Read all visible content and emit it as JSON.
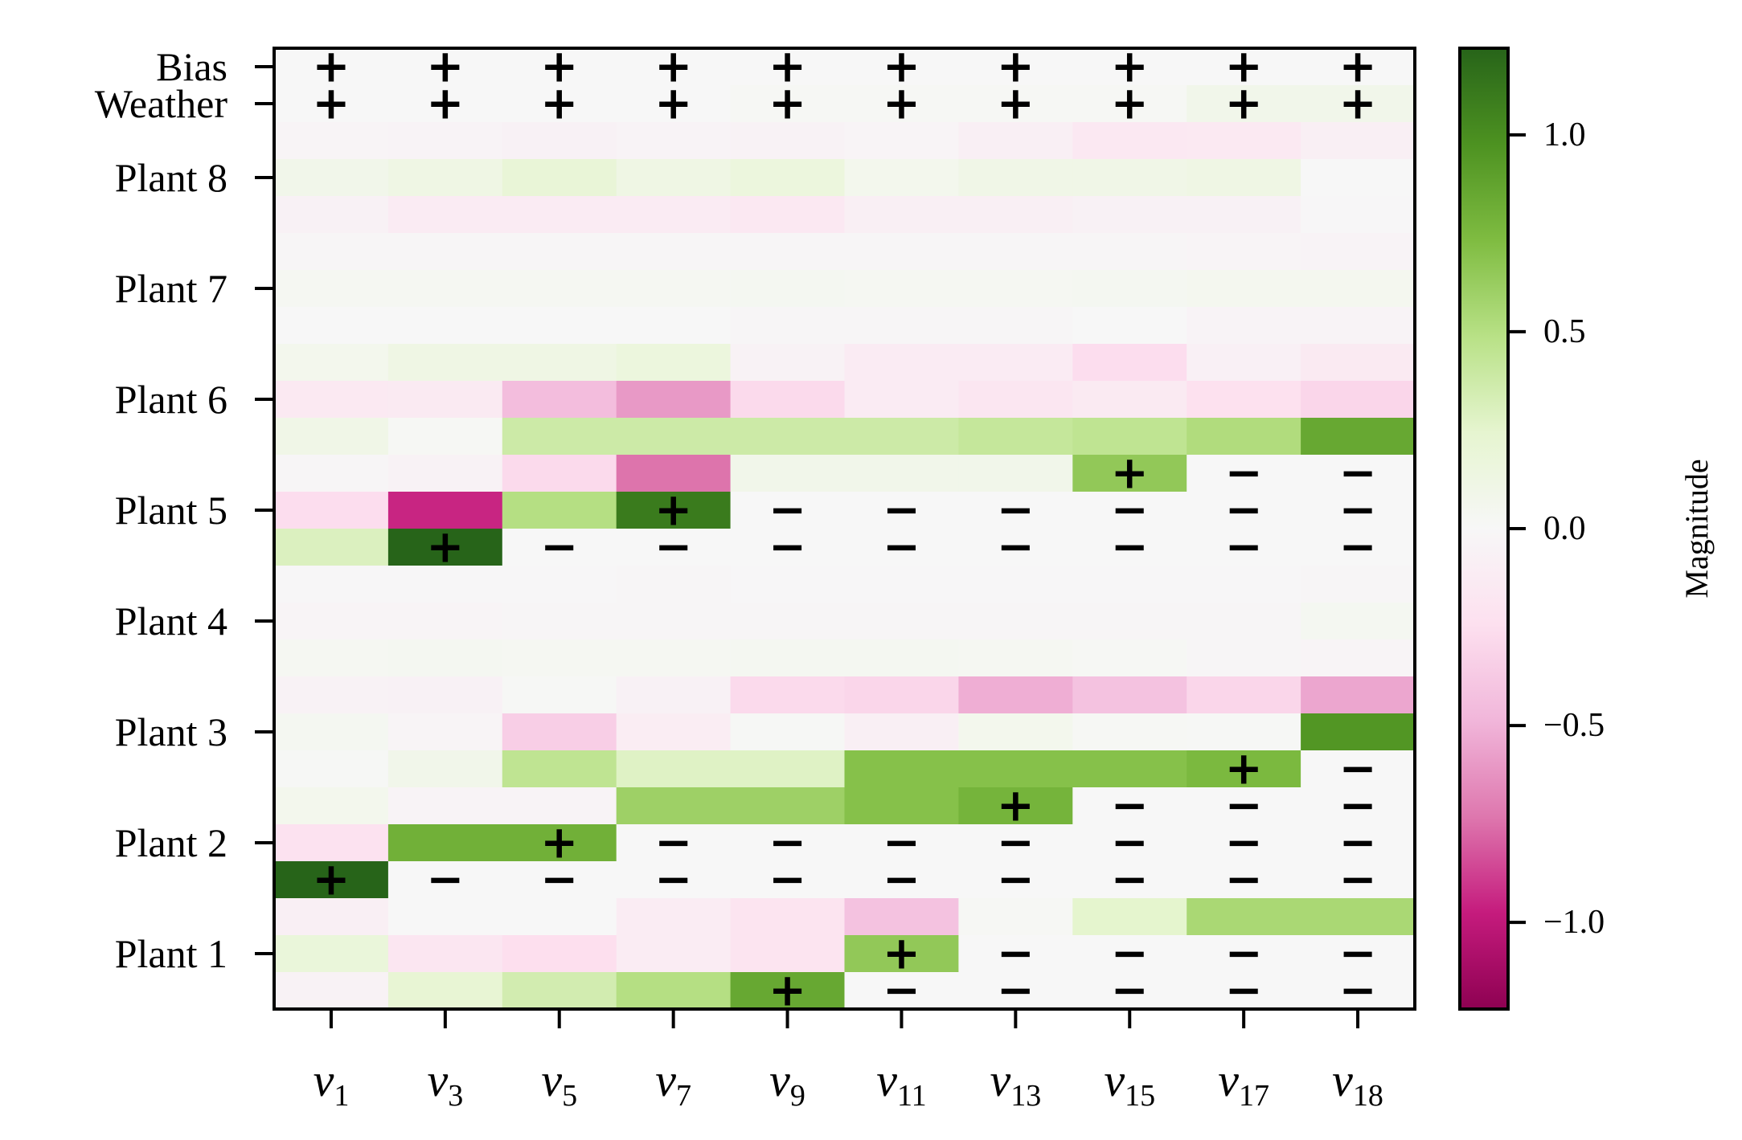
{
  "chart_data": {
    "type": "heatmap",
    "title": "",
    "x_label_prefix": "v",
    "x_labels": [
      "1",
      "3",
      "5",
      "7",
      "9",
      "11",
      "13",
      "15",
      "17",
      "18"
    ],
    "y_tick_labels": [
      {
        "row": 0,
        "label": "Bias"
      },
      {
        "row": 1,
        "label": "Weather"
      },
      {
        "row": 3,
        "label": "Plant 8"
      },
      {
        "row": 6,
        "label": "Plant 7"
      },
      {
        "row": 9,
        "label": "Plant 6"
      },
      {
        "row": 12,
        "label": "Plant 5"
      },
      {
        "row": 15,
        "label": "Plant 4"
      },
      {
        "row": 18,
        "label": "Plant 3"
      },
      {
        "row": 21,
        "label": "Plant 2"
      },
      {
        "row": 24,
        "label": "Plant 1"
      }
    ],
    "colorbar": {
      "label": "Magnitude",
      "range": [
        -1.22,
        1.22
      ],
      "ticks": [
        1.0,
        0.5,
        0.0,
        -0.5,
        -1.0
      ],
      "tick_labels": [
        "1.0",
        "0.5",
        "0.0",
        "−0.5",
        "−1.0"
      ],
      "colormap": "PiYG"
    },
    "values": [
      [
        0.0,
        0.0,
        0.0,
        0.0,
        0.0,
        0.0,
        0.0,
        0.0,
        0.0,
        0.0
      ],
      [
        0.0,
        0.0,
        0.0,
        0.0,
        0.02,
        0.02,
        0.02,
        0.02,
        0.08,
        0.08
      ],
      [
        -0.03,
        -0.04,
        -0.06,
        -0.04,
        -0.05,
        -0.03,
        -0.09,
        -0.16,
        -0.15,
        -0.08
      ],
      [
        0.08,
        0.12,
        0.2,
        0.12,
        0.16,
        0.06,
        0.1,
        0.1,
        0.12,
        0.0
      ],
      [
        -0.06,
        -0.13,
        -0.13,
        -0.13,
        -0.16,
        -0.09,
        -0.09,
        -0.06,
        -0.06,
        -0.01
      ],
      [
        -0.02,
        -0.02,
        -0.02,
        -0.02,
        -0.02,
        -0.02,
        -0.02,
        -0.02,
        -0.03,
        -0.04
      ],
      [
        0.03,
        0.03,
        0.03,
        0.03,
        0.04,
        0.03,
        0.03,
        0.04,
        0.05,
        0.05
      ],
      [
        0.0,
        0.0,
        0.0,
        0.0,
        -0.02,
        -0.02,
        -0.02,
        0.0,
        -0.04,
        -0.04
      ],
      [
        0.06,
        0.12,
        0.12,
        0.16,
        -0.05,
        -0.13,
        -0.13,
        -0.26,
        -0.07,
        -0.14
      ],
      [
        -0.15,
        -0.14,
        -0.45,
        -0.6,
        -0.28,
        -0.13,
        -0.18,
        -0.14,
        -0.23,
        -0.3
      ],
      [
        0.1,
        0.02,
        0.38,
        0.38,
        0.38,
        0.38,
        0.42,
        0.45,
        0.52,
        0.85
      ],
      [
        -0.02,
        -0.05,
        -0.28,
        -0.74,
        0.08,
        0.08,
        0.08,
        0.65,
        0.0,
        0.0
      ],
      [
        -0.26,
        -0.95,
        0.5,
        1.1,
        0.0,
        0.0,
        0.0,
        0.0,
        0.0,
        0.0
      ],
      [
        0.3,
        1.22,
        0.0,
        0.0,
        0.0,
        0.0,
        0.0,
        0.0,
        0.0,
        0.0
      ],
      [
        -0.01,
        -0.01,
        -0.01,
        -0.02,
        -0.01,
        -0.01,
        -0.01,
        -0.01,
        -0.01,
        -0.02
      ],
      [
        -0.03,
        -0.03,
        -0.02,
        -0.02,
        -0.02,
        -0.02,
        -0.02,
        -0.02,
        -0.02,
        0.04
      ],
      [
        0.03,
        0.04,
        0.03,
        0.03,
        0.04,
        0.04,
        0.03,
        0.02,
        -0.02,
        -0.03
      ],
      [
        -0.05,
        -0.06,
        0.01,
        -0.06,
        -0.28,
        -0.3,
        -0.52,
        -0.42,
        -0.3,
        -0.55
      ],
      [
        0.04,
        -0.03,
        -0.35,
        -0.11,
        0.01,
        -0.08,
        0.06,
        0.02,
        0.01,
        0.95
      ],
      [
        0.01,
        0.08,
        0.45,
        0.28,
        0.28,
        0.7,
        0.7,
        0.7,
        0.75,
        0.0
      ],
      [
        0.06,
        -0.04,
        -0.04,
        0.6,
        0.6,
        0.7,
        0.78,
        0.0,
        0.0,
        0.0
      ],
      [
        -0.22,
        0.8,
        0.8,
        0.0,
        0.0,
        0.0,
        0.0,
        0.0,
        0.0,
        0.0
      ],
      [
        1.22,
        0.0,
        0.0,
        0.0,
        0.0,
        0.0,
        0.0,
        0.0,
        0.0,
        0.0
      ],
      [
        -0.08,
        0.0,
        0.0,
        -0.12,
        -0.2,
        -0.42,
        0.02,
        0.25,
        0.55,
        0.55
      ],
      [
        0.18,
        -0.18,
        -0.25,
        -0.12,
        -0.2,
        0.65,
        0.0,
        0.0,
        0.0,
        0.0
      ],
      [
        -0.05,
        0.22,
        0.35,
        0.5,
        0.85,
        0.0,
        0.0,
        0.0,
        0.0,
        0.0
      ]
    ],
    "marks": [
      [
        "+",
        "+",
        "+",
        "+",
        "+",
        "+",
        "+",
        "+",
        "+",
        "+"
      ],
      [
        "+",
        "+",
        "+",
        "+",
        "+",
        "+",
        "+",
        "+",
        "+",
        "+"
      ],
      [
        "",
        "",
        "",
        "",
        "",
        "",
        "",
        "",
        "",
        ""
      ],
      [
        "",
        "",
        "",
        "",
        "",
        "",
        "",
        "",
        "",
        ""
      ],
      [
        "",
        "",
        "",
        "",
        "",
        "",
        "",
        "",
        "",
        ""
      ],
      [
        "",
        "",
        "",
        "",
        "",
        "",
        "",
        "",
        "",
        ""
      ],
      [
        "",
        "",
        "",
        "",
        "",
        "",
        "",
        "",
        "",
        ""
      ],
      [
        "",
        "",
        "",
        "",
        "",
        "",
        "",
        "",
        "",
        ""
      ],
      [
        "",
        "",
        "",
        "",
        "",
        "",
        "",
        "",
        "",
        ""
      ],
      [
        "",
        "",
        "",
        "",
        "",
        "",
        "",
        "",
        "",
        ""
      ],
      [
        "",
        "",
        "",
        "",
        "",
        "",
        "",
        "",
        "",
        ""
      ],
      [
        "",
        "",
        "",
        "",
        "",
        "",
        "",
        "+",
        "−",
        "−"
      ],
      [
        "",
        "",
        "",
        "+",
        "−",
        "−",
        "−",
        "−",
        "−",
        "−"
      ],
      [
        "",
        "+",
        "−",
        "−",
        "−",
        "−",
        "−",
        "−",
        "−",
        "−"
      ],
      [
        "",
        "",
        "",
        "",
        "",
        "",
        "",
        "",
        "",
        ""
      ],
      [
        "",
        "",
        "",
        "",
        "",
        "",
        "",
        "",
        "",
        ""
      ],
      [
        "",
        "",
        "",
        "",
        "",
        "",
        "",
        "",
        "",
        ""
      ],
      [
        "",
        "",
        "",
        "",
        "",
        "",
        "",
        "",
        "",
        ""
      ],
      [
        "",
        "",
        "",
        "",
        "",
        "",
        "",
        "",
        "",
        ""
      ],
      [
        "",
        "",
        "",
        "",
        "",
        "",
        "",
        "",
        "+",
        "−"
      ],
      [
        "",
        "",
        "",
        "",
        "",
        "",
        "+",
        "−",
        "−",
        "−"
      ],
      [
        "",
        "",
        "+",
        "−",
        "−",
        "−",
        "−",
        "−",
        "−",
        "−"
      ],
      [
        "+",
        "−",
        "−",
        "−",
        "−",
        "−",
        "−",
        "−",
        "−",
        "−"
      ],
      [
        "",
        "",
        "",
        "",
        "",
        "",
        "",
        "",
        "",
        ""
      ],
      [
        "",
        "",
        "",
        "",
        "",
        "+",
        "−",
        "−",
        "−",
        "−"
      ],
      [
        "",
        "",
        "",
        "",
        "+",
        "−",
        "−",
        "−",
        "−",
        "−"
      ]
    ]
  }
}
